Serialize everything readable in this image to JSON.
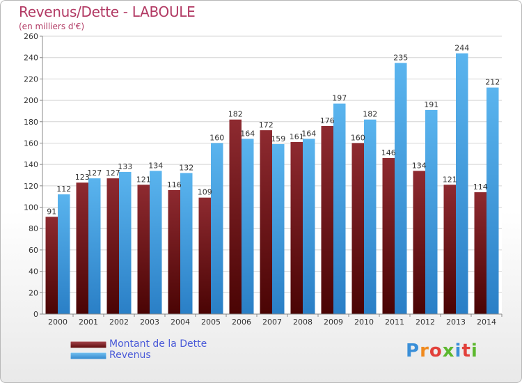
{
  "header": {
    "title": "Revenus/Dette - LABOULE",
    "subtitle": "(en milliers d'€)"
  },
  "colors": {
    "title": "#b23a64",
    "dette": "#8b1f26",
    "revenus": "#4aa6e8",
    "legend_text": "#4a5ad8"
  },
  "chart_data": {
    "type": "bar",
    "title": "Revenus/Dette - LABOULE",
    "ylabel": "(en milliers d'€)",
    "xlabel": "",
    "ylim": [
      0,
      260
    ],
    "yticks": [
      0,
      20,
      40,
      60,
      80,
      100,
      120,
      140,
      160,
      180,
      200,
      220,
      240,
      260
    ],
    "grid": true,
    "categories": [
      "2000",
      "2001",
      "2002",
      "2003",
      "2004",
      "2005",
      "2006",
      "2007",
      "2008",
      "2009",
      "2010",
      "2011",
      "2012",
      "2013",
      "2014"
    ],
    "series": [
      {
        "name": "Montant de la Dette",
        "values": [
          91,
          123,
          127,
          121,
          116,
          109,
          182,
          172,
          161,
          176,
          160,
          146,
          134,
          121,
          114
        ]
      },
      {
        "name": "Revenus",
        "values": [
          112,
          127,
          133,
          134,
          132,
          160,
          164,
          159,
          164,
          197,
          182,
          235,
          191,
          244,
          212
        ]
      }
    ],
    "legend": [
      "Montant de la Dette",
      "Revenus"
    ],
    "legend_position": "bottom-left"
  },
  "logo": {
    "text": "Proxiti",
    "letter_colors": [
      "#3a8fd8",
      "#f08a1e",
      "#e2403a",
      "#5cb82e",
      "#3a8fd8",
      "#e2403a",
      "#5cb82e"
    ]
  }
}
